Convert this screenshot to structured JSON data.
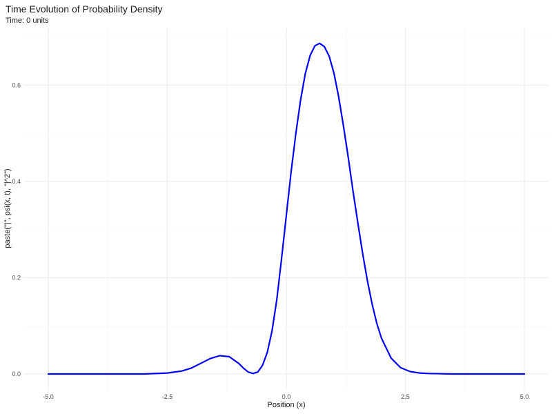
{
  "chart_data": {
    "type": "line",
    "title": "Time Evolution of Probability Density",
    "subtitle": "Time: 0 units",
    "xlabel": "Position (x)",
    "ylabel": "paste(\"|\", psi(x, t), \"|^2\")",
    "xlim": [
      -5.0,
      5.0
    ],
    "ylim": [
      0,
      0.7
    ],
    "x_ticks": [
      "-5.0",
      "-2.5",
      "0.0",
      "2.5",
      "5.0"
    ],
    "y_ticks": [
      "0.0",
      "0.2",
      "0.4",
      "0.6"
    ],
    "grid": true,
    "series": [
      {
        "color": "#0000ff",
        "x": [
          -5.0,
          -4.0,
          -3.0,
          -2.5,
          -2.2,
          -2.0,
          -1.8,
          -1.6,
          -1.4,
          -1.2,
          -1.0,
          -0.9,
          -0.8,
          -0.7,
          -0.6,
          -0.5,
          -0.4,
          -0.3,
          -0.2,
          -0.1,
          0.0,
          0.1,
          0.2,
          0.3,
          0.4,
          0.5,
          0.6,
          0.7,
          0.8,
          0.9,
          1.0,
          1.1,
          1.2,
          1.3,
          1.4,
          1.5,
          1.6,
          1.7,
          1.8,
          1.9,
          2.0,
          2.2,
          2.4,
          2.6,
          2.8,
          3.0,
          3.5,
          4.0,
          5.0
        ],
        "y": [
          0.0,
          0.0,
          0.0,
          0.002,
          0.006,
          0.012,
          0.022,
          0.032,
          0.038,
          0.036,
          0.022,
          0.012,
          0.004,
          0.001,
          0.004,
          0.018,
          0.045,
          0.09,
          0.155,
          0.24,
          0.33,
          0.42,
          0.5,
          0.57,
          0.625,
          0.662,
          0.682,
          0.687,
          0.68,
          0.66,
          0.625,
          0.575,
          0.515,
          0.45,
          0.38,
          0.315,
          0.252,
          0.195,
          0.146,
          0.105,
          0.074,
          0.033,
          0.013,
          0.005,
          0.002,
          0.001,
          0.0,
          0.0,
          0.0
        ]
      }
    ]
  }
}
